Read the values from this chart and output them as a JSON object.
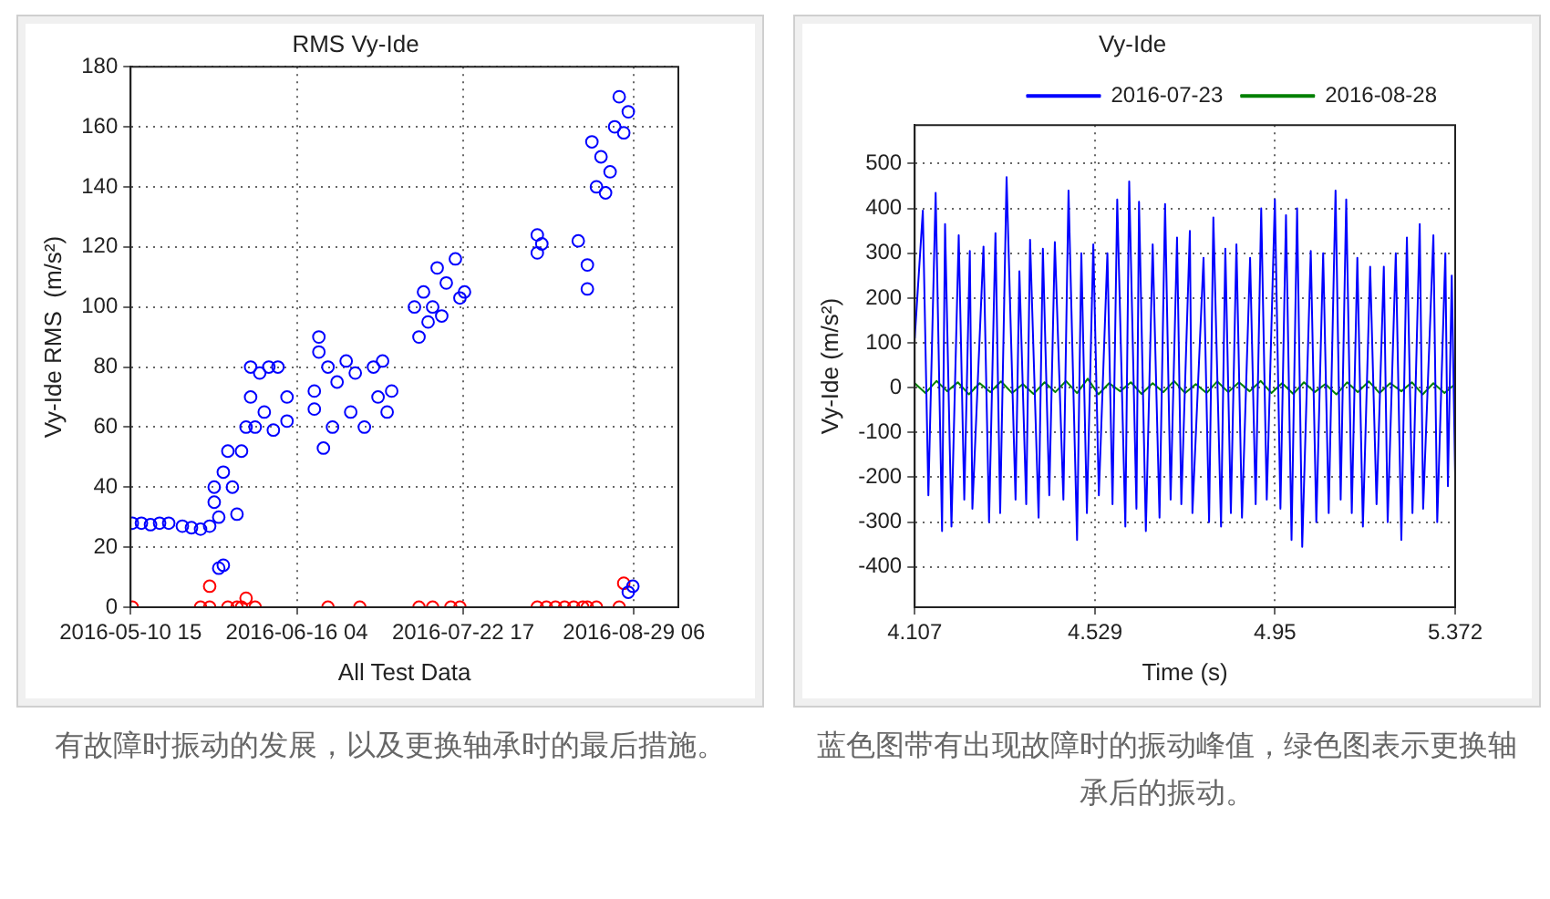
{
  "chart_data": [
    {
      "type": "scatter",
      "title": "RMS Vy-Ide",
      "xlabel": "All Test Data",
      "ylabel": "Vy-Ide RMS  (m/s²)",
      "annotations": [
        "有故障时振动的发展，以及更换轴承时的最后措施。"
      ],
      "xlim": [
        "2016-05-10T15:00",
        "2016-09-08T00:00"
      ],
      "xticks": [
        {
          "value": "2016-05-10T15:00",
          "label": "2016-05-10 15"
        },
        {
          "value": "2016-06-16T04:00",
          "label": "2016-06-16 04"
        },
        {
          "value": "2016-07-22T17:00",
          "label": "2016-07-22 17"
        },
        {
          "value": "2016-08-29T06:00",
          "label": "2016-08-29 06"
        }
      ],
      "ylim": [
        0,
        180
      ],
      "yticks": [
        0,
        20,
        40,
        60,
        80,
        100,
        120,
        140,
        160,
        180
      ],
      "grid": true,
      "marker": "circle",
      "series": [
        {
          "color": "#0000ff",
          "x": [
            "2016-05-11",
            "2016-05-13",
            "2016-05-15",
            "2016-05-17",
            "2016-05-19",
            "2016-05-22",
            "2016-05-24",
            "2016-05-26",
            "2016-05-28",
            "2016-05-29",
            "2016-05-29",
            "2016-05-30",
            "2016-05-30",
            "2016-05-31",
            "2016-05-31",
            "2016-06-01",
            "2016-06-02",
            "2016-06-03",
            "2016-06-04",
            "2016-06-05",
            "2016-06-06",
            "2016-06-06",
            "2016-06-07",
            "2016-06-08",
            "2016-06-09",
            "2016-06-10",
            "2016-06-11",
            "2016-06-12",
            "2016-06-14",
            "2016-06-14",
            "2016-06-20",
            "2016-06-20",
            "2016-06-21",
            "2016-06-21",
            "2016-06-22",
            "2016-06-23",
            "2016-06-24",
            "2016-06-25",
            "2016-06-27",
            "2016-06-28",
            "2016-06-29",
            "2016-07-01",
            "2016-07-03",
            "2016-07-04",
            "2016-07-05",
            "2016-07-06",
            "2016-07-07",
            "2016-07-12",
            "2016-07-13",
            "2016-07-14",
            "2016-07-15",
            "2016-07-16",
            "2016-07-17",
            "2016-07-18",
            "2016-07-19",
            "2016-07-21",
            "2016-07-22",
            "2016-07-23",
            "2016-08-08",
            "2016-08-08",
            "2016-08-09",
            "2016-08-17",
            "2016-08-19",
            "2016-08-19",
            "2016-08-20",
            "2016-08-21",
            "2016-08-22",
            "2016-08-23",
            "2016-08-24",
            "2016-08-25",
            "2016-08-26",
            "2016-08-27",
            "2016-08-28",
            "2016-08-28",
            "2016-08-29"
          ],
          "values": [
            28,
            28,
            27.5,
            28,
            28,
            27,
            26.5,
            26,
            27,
            35,
            40,
            30,
            13,
            45,
            14,
            52,
            40,
            31,
            52,
            60,
            70,
            80,
            60,
            78,
            65,
            80,
            59,
            80,
            70,
            62,
            66,
            72,
            90,
            85,
            53,
            80,
            60,
            75,
            82,
            65,
            78,
            60,
            80,
            70,
            82,
            65,
            72,
            100,
            90,
            105,
            95,
            100,
            113,
            97,
            108,
            116,
            103,
            105,
            118,
            124,
            121,
            122,
            106,
            114,
            155,
            140,
            150,
            138,
            145,
            160,
            170,
            158,
            165,
            5,
            7
          ]
        },
        {
          "color": "#ff0000",
          "x": [
            "2016-05-11",
            "2016-05-26",
            "2016-05-28",
            "2016-05-28",
            "2016-06-01",
            "2016-06-03",
            "2016-06-04",
            "2016-06-05",
            "2016-06-07",
            "2016-06-23",
            "2016-06-30",
            "2016-07-13",
            "2016-07-16",
            "2016-07-20",
            "2016-07-22",
            "2016-08-08",
            "2016-08-10",
            "2016-08-12",
            "2016-08-14",
            "2016-08-16",
            "2016-08-18",
            "2016-08-19",
            "2016-08-21",
            "2016-08-26",
            "2016-08-27"
          ],
          "values": [
            0,
            0,
            0,
            7,
            0,
            0,
            0,
            3,
            0,
            0,
            0,
            0,
            0,
            0,
            0,
            0,
            0,
            0,
            0,
            0,
            0,
            0,
            0,
            0,
            8
          ]
        }
      ]
    },
    {
      "type": "line",
      "title": "Vy-Ide",
      "xlabel": "Time (s)",
      "ylabel": "Vy-Ide (m/s²)",
      "annotations": [
        "蓝色图带有出现故障时的振动峰值，绿色图表示更换轴承后的振动。"
      ],
      "xlim": [
        4.107,
        5.372
      ],
      "xticks": [
        4.107,
        4.529,
        4.95,
        5.372
      ],
      "ylim": [
        -490,
        586
      ],
      "yticks": [
        -400,
        -300,
        -200,
        -100,
        0,
        100,
        200,
        300,
        400,
        500
      ],
      "grid": true,
      "legend": "top right",
      "marker": "none",
      "line_style": "solid",
      "series": [
        {
          "name": "2016-07-23",
          "color": "#0000ff",
          "x": [
            4.107,
            4.126,
            4.139,
            4.156,
            4.171,
            4.178,
            4.193,
            4.21,
            4.223,
            4.236,
            4.242,
            4.268,
            4.281,
            4.296,
            4.307,
            4.322,
            4.343,
            4.352,
            4.368,
            4.377,
            4.397,
            4.407,
            4.422,
            4.435,
            4.455,
            4.467,
            4.487,
            4.497,
            4.51,
            4.525,
            4.538,
            4.558,
            4.57,
            4.581,
            4.6,
            4.609,
            4.626,
            4.632,
            4.648,
            4.664,
            4.68,
            4.693,
            4.706,
            4.721,
            4.731,
            4.751,
            4.757,
            4.783,
            4.796,
            4.806,
            4.824,
            4.834,
            4.847,
            4.86,
            4.873,
            4.892,
            4.905,
            4.918,
            4.931,
            4.95,
            4.963,
            4.976,
            4.989,
            5.002,
            5.014,
            5.034,
            5.047,
            5.063,
            5.076,
            5.092,
            5.104,
            5.117,
            5.13,
            5.143,
            5.156,
            5.173,
            5.188,
            5.205,
            5.214,
            5.233,
            5.246,
            5.259,
            5.272,
            5.289,
            5.297,
            5.321,
            5.33,
            5.349,
            5.355,
            5.364,
            5.372
          ],
          "values": [
            110,
            395,
            -240,
            435,
            -320,
            365,
            -310,
            340,
            -250,
            305,
            -270,
            315,
            -300,
            345,
            -280,
            470,
            -250,
            260,
            -260,
            330,
            -290,
            310,
            -240,
            325,
            -250,
            440,
            -340,
            300,
            -280,
            320,
            -240,
            300,
            -260,
            420,
            -310,
            460,
            -270,
            415,
            -320,
            320,
            -290,
            410,
            -250,
            335,
            -260,
            350,
            -280,
            290,
            -300,
            380,
            -310,
            310,
            -280,
            320,
            -290,
            290,
            -260,
            400,
            -250,
            420,
            -270,
            385,
            -340,
            400,
            -355,
            305,
            -300,
            300,
            -280,
            440,
            -250,
            420,
            -280,
            290,
            -310,
            270,
            -260,
            270,
            -300,
            300,
            -340,
            335,
            -280,
            365,
            -270,
            340,
            -300,
            300,
            -220,
            250,
            -200
          ]
        },
        {
          "name": "2016-08-28",
          "color": "#008000",
          "x": [
            4.107,
            4.132,
            4.158,
            4.183,
            4.208,
            4.234,
            4.259,
            4.284,
            4.309,
            4.335,
            4.36,
            4.385,
            4.411,
            4.436,
            4.461,
            4.487,
            4.512,
            4.537,
            4.562,
            4.588,
            4.613,
            4.638,
            4.664,
            4.689,
            4.714,
            4.74,
            4.765,
            4.79,
            4.815,
            4.841,
            4.866,
            4.891,
            4.917,
            4.942,
            4.967,
            4.993,
            5.018,
            5.043,
            5.068,
            5.094,
            5.119,
            5.144,
            5.17,
            5.195,
            5.22,
            5.246,
            5.271,
            5.296,
            5.321,
            5.347,
            5.372
          ],
          "values": [
            10,
            -12,
            15,
            -8,
            12,
            -15,
            10,
            -10,
            14,
            -12,
            8,
            -14,
            12,
            -10,
            15,
            -12,
            20,
            -15,
            10,
            -8,
            12,
            -14,
            10,
            -10,
            15,
            -12,
            8,
            -12,
            14,
            -10,
            12,
            -8,
            15,
            -12,
            10,
            -14,
            12,
            -10,
            8,
            -15,
            12,
            -10,
            14,
            -12,
            10,
            -8,
            12,
            -15,
            10,
            -12,
            8
          ]
        }
      ]
    }
  ]
}
